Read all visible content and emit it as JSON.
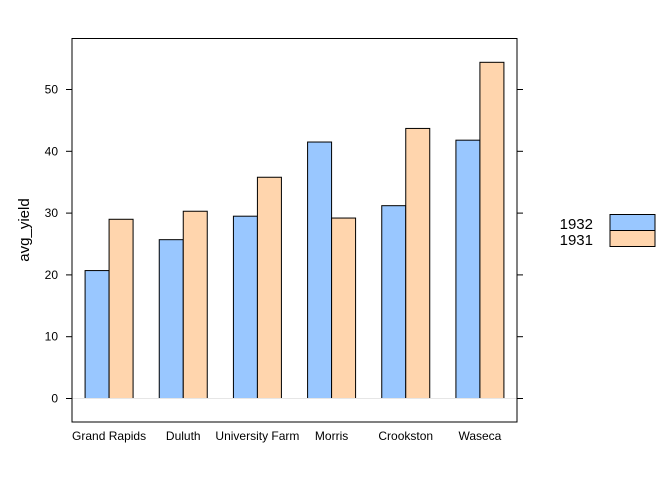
{
  "chart_data": {
    "type": "bar",
    "title": "",
    "xlabel": "",
    "ylabel": "avg_yield",
    "ylim": [
      -4.1,
      58.4
    ],
    "yticks": [
      0,
      10,
      20,
      30,
      40,
      50
    ],
    "categories": [
      "Grand Rapids",
      "Duluth",
      "University Farm",
      "Morris",
      "Crookston",
      "Waseca"
    ],
    "series": [
      {
        "name": "1932",
        "color": "#99c7ff",
        "values": [
          20.7,
          25.7,
          29.5,
          41.5,
          31.2,
          41.8
        ]
      },
      {
        "name": "1931",
        "color": "#ffd5ad",
        "values": [
          29.0,
          30.3,
          35.8,
          29.2,
          43.7,
          54.4
        ]
      }
    ],
    "legend": {
      "placement": "right",
      "entries": [
        "1932",
        "1931"
      ]
    },
    "grid": false
  }
}
